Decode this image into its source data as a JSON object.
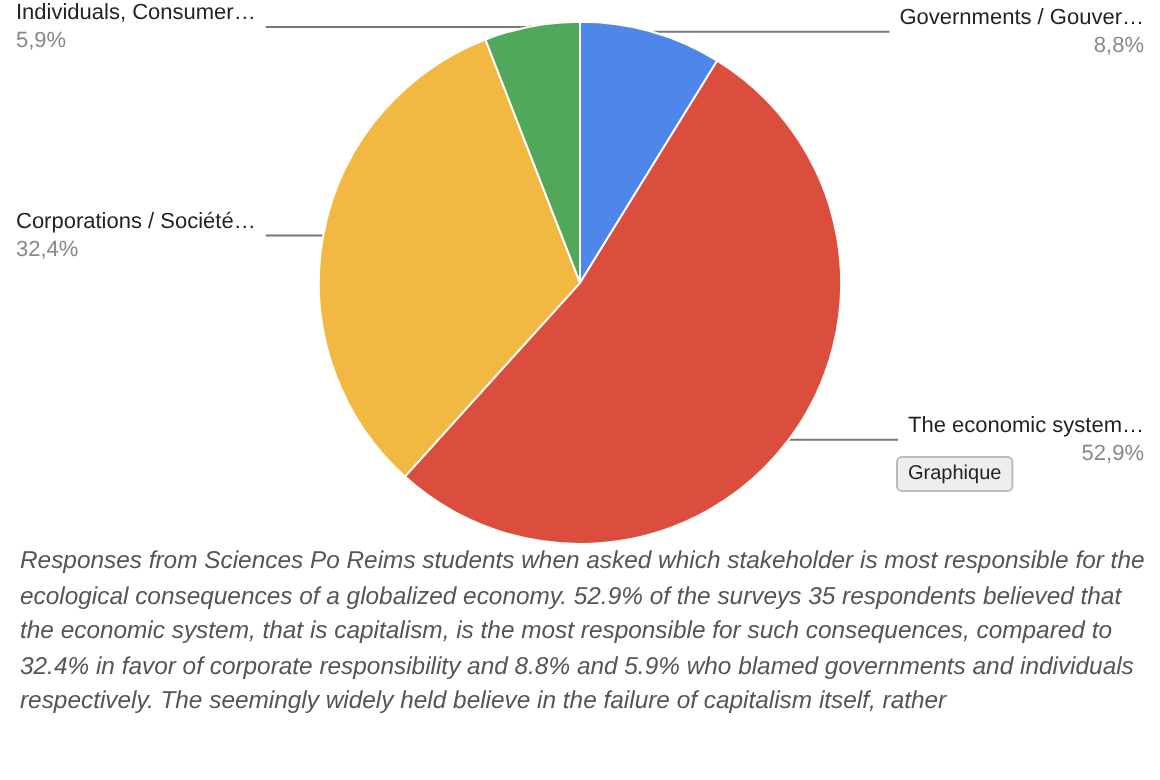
{
  "chart_data": {
    "type": "pie",
    "categories": [
      "Governments / Gouver…",
      "The economic system…",
      "Corporations / Société…",
      "Individuals, Consumer…"
    ],
    "values": [
      8.8,
      52.9,
      32.4,
      5.9
    ],
    "value_labels": [
      "8,8%",
      "52,9%",
      "32,4%",
      "5,9%"
    ],
    "colors": [
      "#4e86ea",
      "#db4d3d",
      "#f2b942",
      "#52a85a"
    ],
    "annotations": [
      "Graphique",
      "Responses from Sciences Po Reims students when asked which stakeholder is most responsible for the ecological consequences of a globalized economy. 52.9% of the surveys 35 respondents believed that the economic system, that is capitalism, is the most responsible for such consequences, compared to 32.4% in favor of corporate responsibility and 8.8% and 5.9% who blamed governments and individuals respectively. The seemingly widely held believe in the failure of capitalism itself, rather"
    ],
    "legend": false
  }
}
